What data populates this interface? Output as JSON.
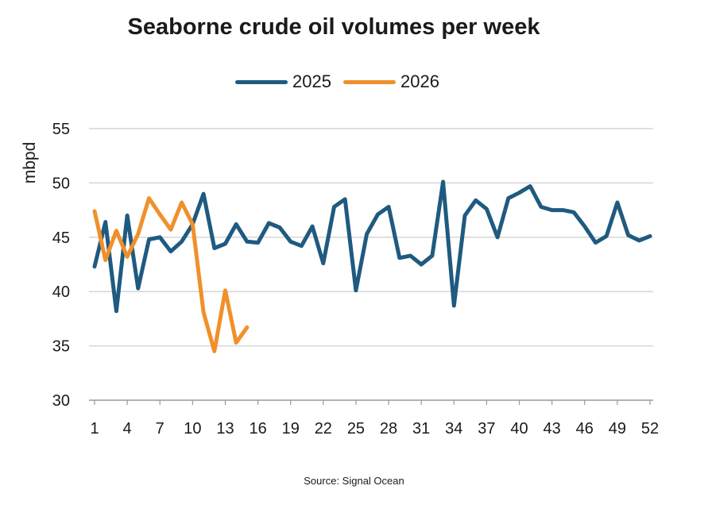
{
  "chart_data": {
    "type": "line",
    "title": "Seaborne crude oil volumes per week",
    "xlabel": "",
    "ylabel": "mbpd",
    "ylim": [
      30,
      55
    ],
    "xlim": [
      1,
      52
    ],
    "yticks": [
      30,
      35,
      40,
      45,
      50,
      55
    ],
    "xticks": [
      1,
      4,
      7,
      10,
      13,
      16,
      19,
      22,
      25,
      28,
      31,
      34,
      37,
      40,
      43,
      46,
      49,
      52
    ],
    "grid": "horizontal",
    "legend_position": "top",
    "series": [
      {
        "name": "2025",
        "color": "#1f5a80",
        "x": [
          1,
          2,
          3,
          4,
          5,
          6,
          7,
          8,
          9,
          10,
          11,
          12,
          13,
          14,
          15,
          16,
          17,
          18,
          19,
          20,
          21,
          22,
          23,
          24,
          25,
          26,
          27,
          28,
          29,
          30,
          31,
          32,
          33,
          34,
          35,
          36,
          37,
          38,
          39,
          40,
          41,
          42,
          43,
          44,
          45,
          46,
          47,
          48,
          49,
          50,
          51,
          52
        ],
        "values": [
          42.3,
          46.4,
          38.2,
          47.0,
          40.3,
          44.8,
          45.0,
          43.7,
          44.6,
          46.2,
          49.0,
          44.0,
          44.4,
          46.2,
          44.6,
          44.5,
          46.3,
          45.9,
          44.6,
          44.2,
          46.0,
          42.6,
          47.8,
          48.5,
          40.1,
          45.3,
          47.1,
          47.8,
          43.1,
          43.3,
          42.5,
          43.3,
          50.1,
          38.7,
          47.0,
          48.4,
          47.6,
          45.0,
          48.6,
          49.1,
          49.7,
          47.8,
          47.5,
          47.5,
          47.3,
          46.0,
          44.5,
          45.1,
          48.2,
          45.2,
          44.7,
          45.1
        ]
      },
      {
        "name": "2026",
        "color": "#f0902a",
        "x": [
          1,
          2,
          3,
          4,
          5,
          6,
          7,
          8,
          9,
          10,
          11,
          12,
          13,
          14,
          15
        ],
        "values": [
          47.4,
          42.9,
          45.6,
          43.2,
          45.3,
          48.6,
          47.1,
          45.7,
          48.2,
          46.2,
          38.1,
          34.5,
          40.1,
          35.3,
          36.7
        ]
      }
    ]
  },
  "source": "Source: Signal Ocean"
}
